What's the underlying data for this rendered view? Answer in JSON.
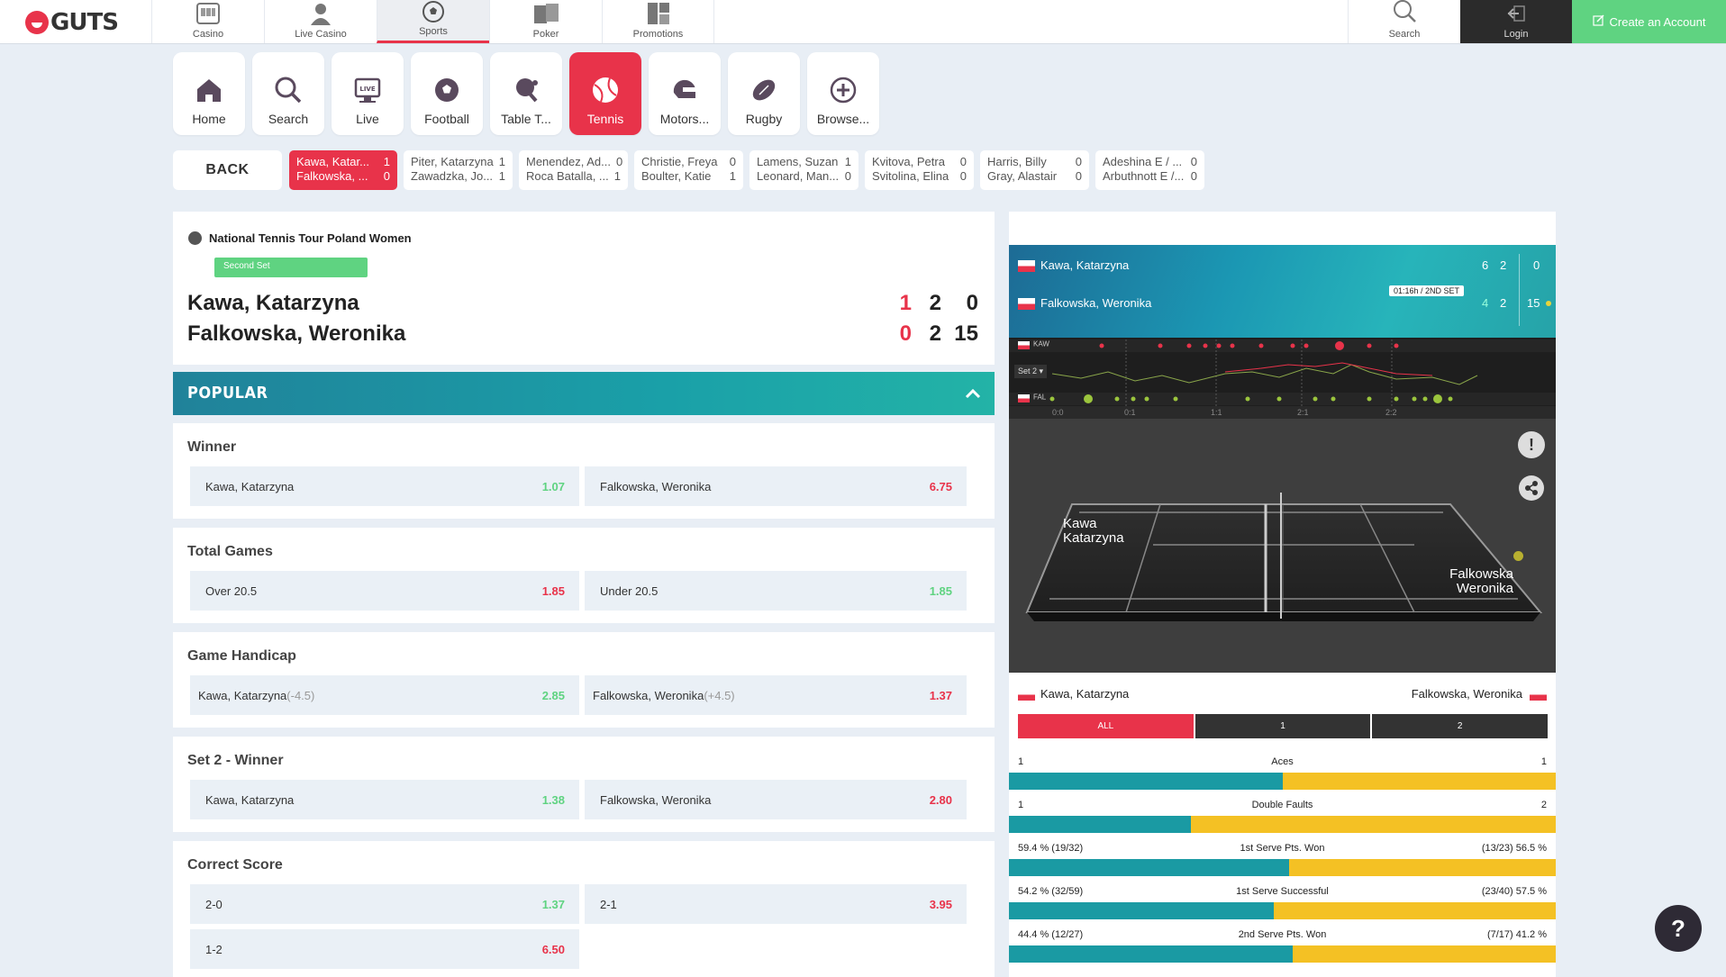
{
  "brand": {
    "logo": "GUTS"
  },
  "topnav": [
    {
      "label": "Casino",
      "icon": "slot-machine-icon"
    },
    {
      "label": "Live Casino",
      "icon": "dealer-icon"
    },
    {
      "label": "Sports",
      "icon": "soccer-ball-icon"
    },
    {
      "label": "Poker",
      "icon": "cards-icon"
    },
    {
      "label": "Promotions",
      "icon": "promotions-icon"
    }
  ],
  "search_label": "Search",
  "login_label": "Login",
  "create_account_label": "Create an Account",
  "sports": [
    {
      "label": "Home"
    },
    {
      "label": "Search"
    },
    {
      "label": "Live"
    },
    {
      "label": "Football"
    },
    {
      "label": "Table T..."
    },
    {
      "label": "Tennis"
    },
    {
      "label": "Motors..."
    },
    {
      "label": "Rugby"
    },
    {
      "label": "Browse..."
    }
  ],
  "live_badge": "LIVE",
  "back_label": "BACK",
  "matches": [
    {
      "p1": "Kawa, Katar...",
      "s1": "1",
      "p2": "Falkowska, ...",
      "s2": "0"
    },
    {
      "p1": "Piter, Katarzyna",
      "s1": "1",
      "p2": "Zawadzka, Jo...",
      "s2": "1"
    },
    {
      "p1": "Menendez, Ad...",
      "s1": "0",
      "p2": "Roca Batalla, ...",
      "s2": "1"
    },
    {
      "p1": "Christie, Freya",
      "s1": "0",
      "p2": "Boulter, Katie",
      "s2": "1"
    },
    {
      "p1": "Lamens, Suzan",
      "s1": "1",
      "p2": "Leonard, Man...",
      "s2": "0"
    },
    {
      "p1": "Kvitova, Petra",
      "s1": "0",
      "p2": "Svitolina, Elina",
      "s2": "0"
    },
    {
      "p1": "Harris, Billy",
      "s1": "0",
      "p2": "Gray, Alastair",
      "s2": "0"
    },
    {
      "p1": "Adeshina E / ...",
      "s1": "0",
      "p2": "Arbuthnott E /...",
      "s2": "0"
    }
  ],
  "event": {
    "league": "National Tennis Tour Poland Women",
    "period": "Second Set",
    "p1": "Kawa, Katarzyna",
    "p1_sets": "1",
    "p1_games": "2",
    "p1_points": "0",
    "p2": "Falkowska, Weronika",
    "p2_sets": "0",
    "p2_games": "2",
    "p2_points": "15"
  },
  "popular_label": "POPULAR",
  "markets": [
    {
      "title": "Winner",
      "selections": [
        {
          "name": "Kawa, Katarzyna",
          "odds": "1.07"
        },
        {
          "name": "Falkowska, Weronika",
          "odds": "6.75"
        }
      ]
    },
    {
      "title": "Total Games",
      "selections": [
        {
          "name": "Over 20.5",
          "odds": "1.85"
        },
        {
          "name": "Under 20.5",
          "odds": "1.85"
        }
      ]
    },
    {
      "title": "Game Handicap",
      "selections": [
        {
          "name": "Kawa, Katarzyna",
          "handicap": "(-4.5)",
          "odds": "2.85"
        },
        {
          "name": "Falkowska, Weronika",
          "handicap": "(+4.5)",
          "odds": "1.37"
        }
      ]
    },
    {
      "title": "Set 2 - Winner",
      "selections": [
        {
          "name": "Kawa, Katarzyna",
          "odds": "1.38"
        },
        {
          "name": "Falkowska, Weronika",
          "odds": "2.80"
        }
      ]
    },
    {
      "title": "Correct Score",
      "selections": [
        {
          "name": "2-0",
          "odds": "1.37"
        },
        {
          "name": "2-1",
          "odds": "3.95"
        },
        {
          "name": "1-2",
          "odds": "6.50"
        }
      ]
    }
  ],
  "tracker": {
    "p1": "Kawa, Katarzyna",
    "p1_set1": "6",
    "p1_set2": "2",
    "p1_pts": "0",
    "p2": "Falkowska, Weronika",
    "p2_set1": "4",
    "p2_set2": "2",
    "p2_pts": "15",
    "time": "01:16h  /  2ND SET",
    "tl_p1": "KAW",
    "tl_p2": "FAL",
    "tl_set": "Set 2",
    "tl_ticks": [
      "0:0",
      "0:1",
      "1:1",
      "2:1",
      "2:2"
    ],
    "court_p1_line1": "Kawa",
    "court_p1_line2": "Katarzyna",
    "court_p2_line1": "Falkowska",
    "court_p2_line2": "Weronika",
    "tabs": [
      "ALL",
      "1",
      "2"
    ],
    "stats": [
      {
        "left": "1",
        "label": "Aces",
        "right": "1",
        "share": 0.5
      },
      {
        "left": "1",
        "label": "Double Faults",
        "right": "2",
        "share": 0.333
      },
      {
        "left": "59.4 % (19/32)",
        "label": "1st Serve Pts. Won",
        "right": "(13/23) 56.5 %",
        "share": 0.513
      },
      {
        "left": "54.2 % (32/59)",
        "label": "1st Serve Successful",
        "right": "(23/40) 57.5 %",
        "share": 0.485
      },
      {
        "left": "44.4 % (12/27)",
        "label": "2nd Serve Pts. Won",
        "right": "(7/17) 41.2 %",
        "share": 0.519
      }
    ]
  },
  "help_label": "?",
  "colors": {
    "accent": "#e8334a",
    "green": "#5fd381",
    "teal": "#1a9aa3",
    "yellow": "#f4c124"
  }
}
